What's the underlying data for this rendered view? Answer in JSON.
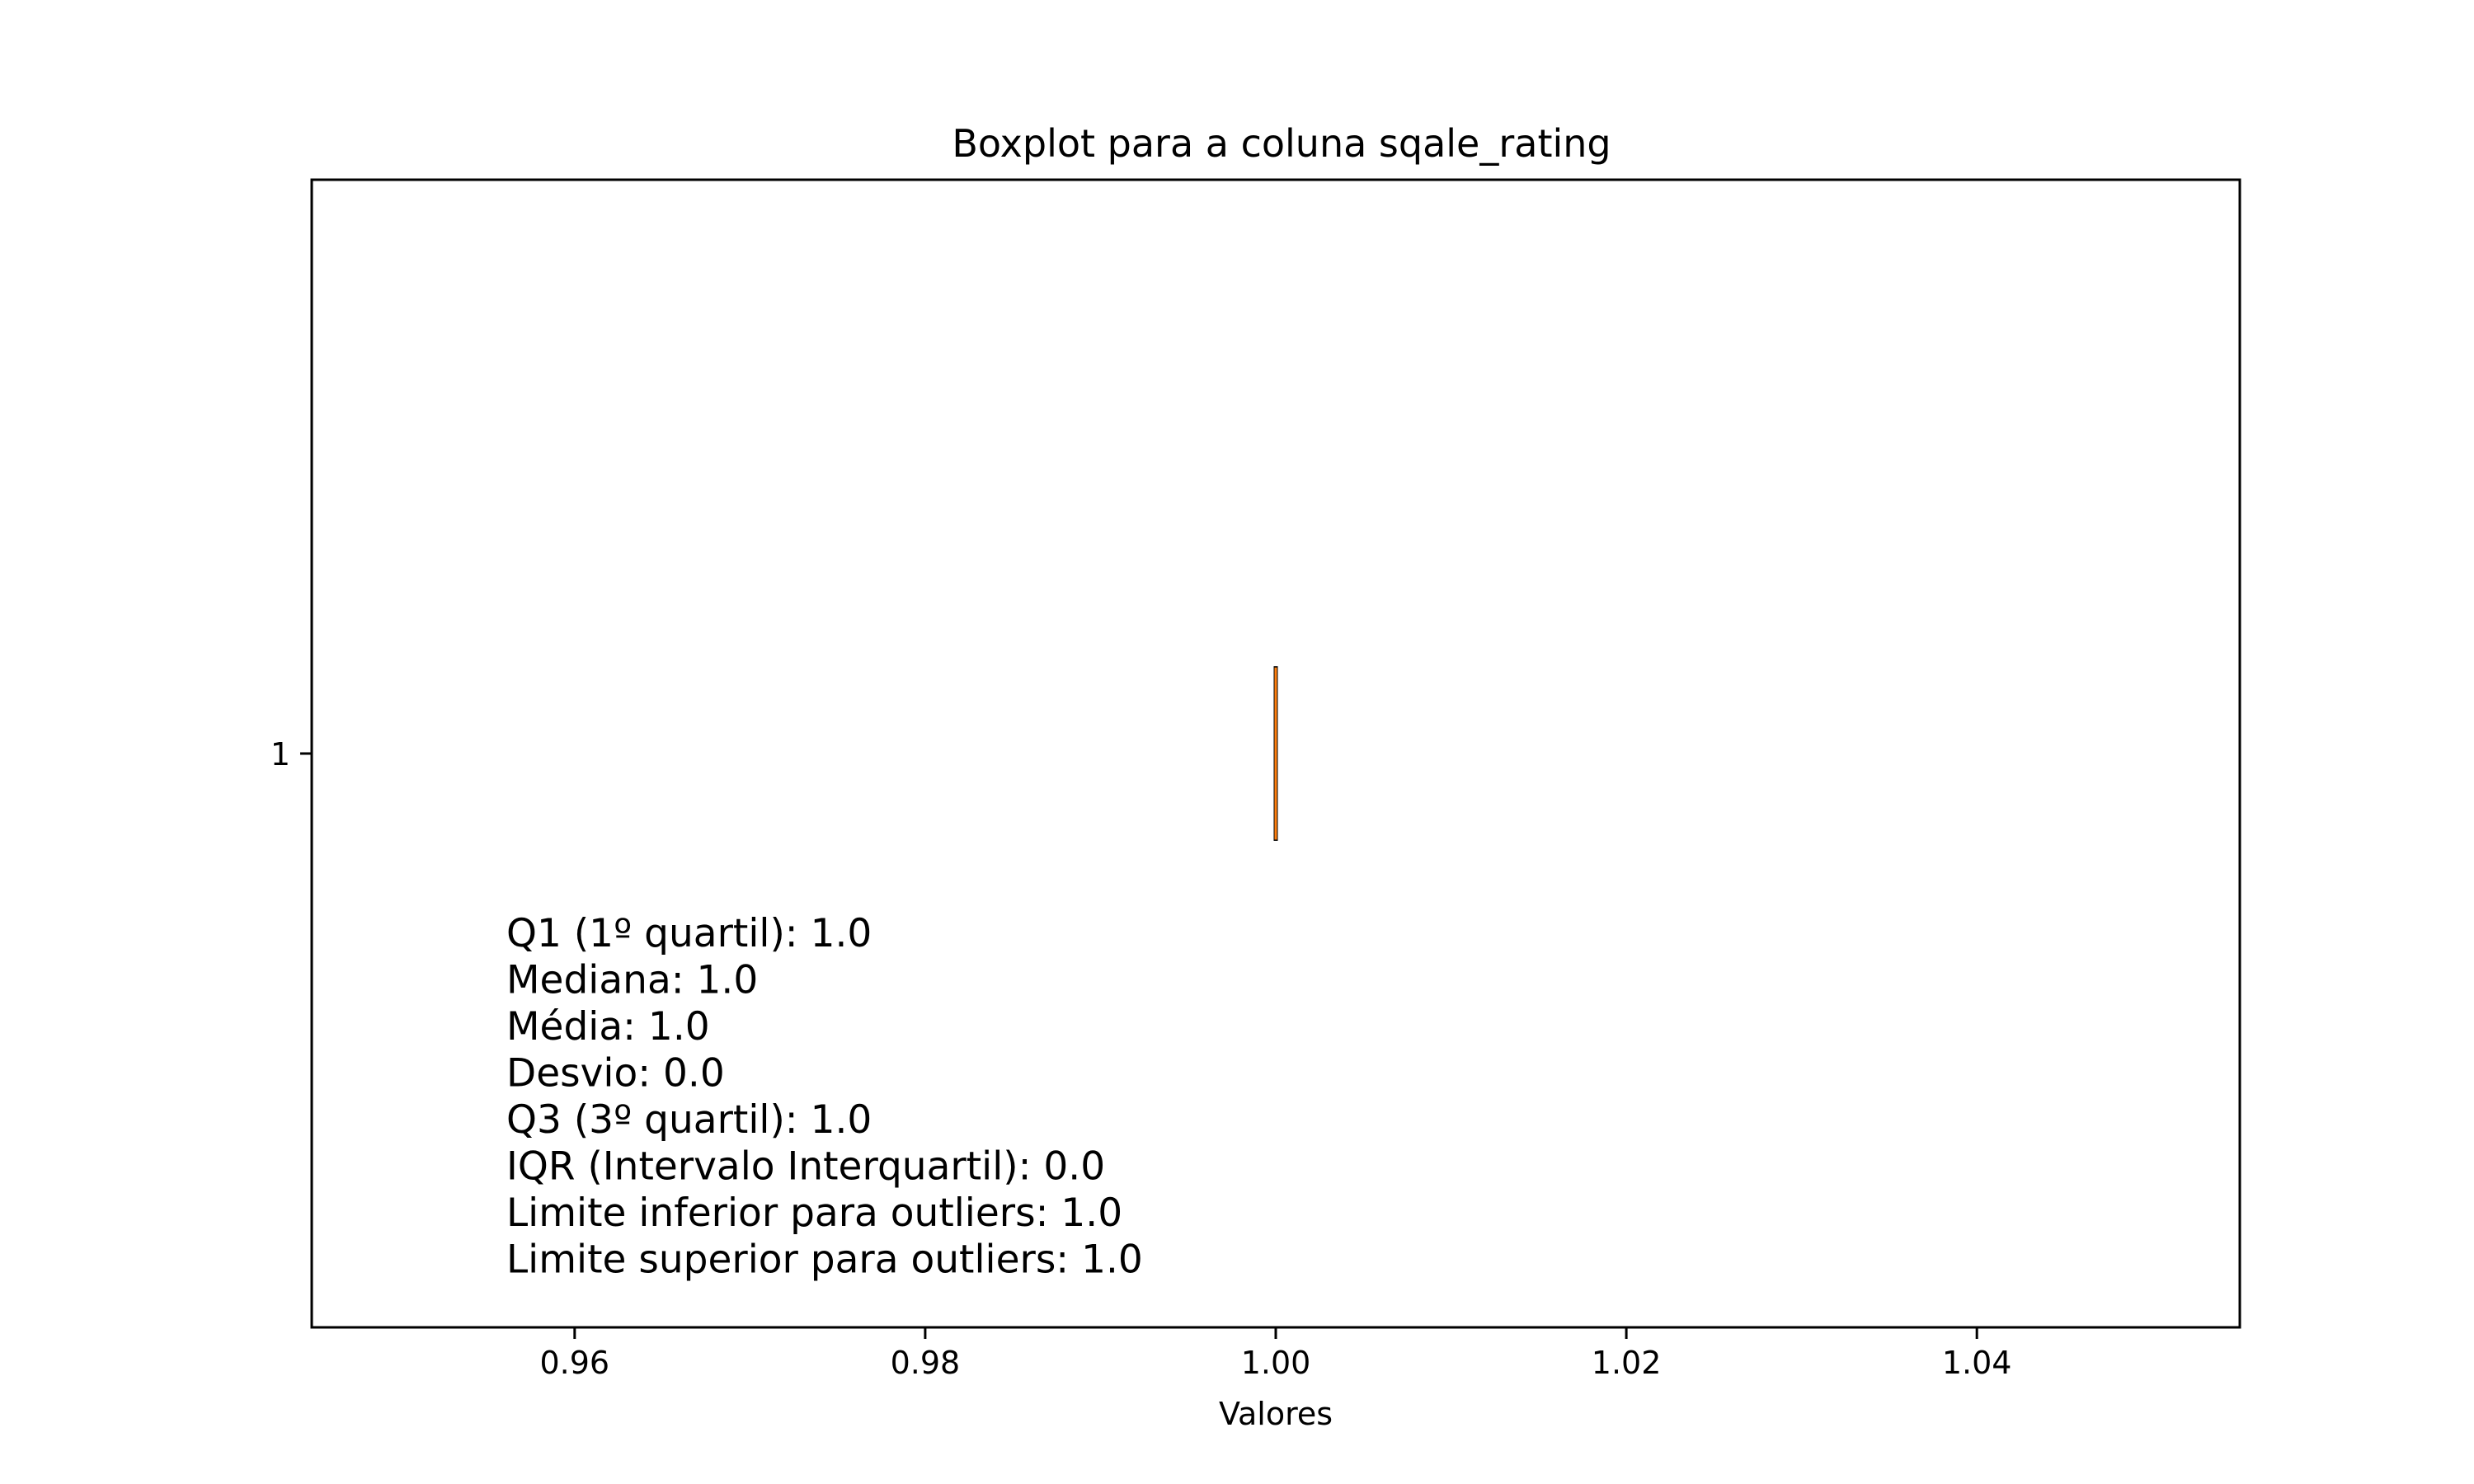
{
  "chart_data": {
    "type": "boxplot",
    "orientation": "horizontal",
    "title": "Boxplot para a coluna sqale_rating",
    "xlabel": "Valores",
    "ylabel": "",
    "xlim": [
      0.945,
      1.055
    ],
    "x_ticks": [
      0.96,
      0.98,
      1.0,
      1.02,
      1.04
    ],
    "x_tick_labels": [
      "0.96",
      "0.98",
      "1.00",
      "1.02",
      "1.04"
    ],
    "y_tick_labels": [
      "1"
    ],
    "grid": false,
    "series": [
      {
        "category": "1",
        "min": 1.0,
        "q1": 1.0,
        "median": 1.0,
        "q3": 1.0,
        "max": 1.0
      }
    ],
    "colors": {
      "box": "#000000",
      "median": "#ff7f0e",
      "axes": "#000000",
      "background": "#ffffff"
    },
    "annotations": [
      "Q1 (1º quartil): 1.0",
      "Mediana: 1.0",
      "Média: 1.0",
      "Desvio: 0.0",
      "Q3 (3º quartil): 1.0",
      "IQR (Intervalo Interquartil): 0.0",
      "Limite inferior para outliers: 1.0",
      "Limite superior para outliers: 1.0"
    ]
  }
}
